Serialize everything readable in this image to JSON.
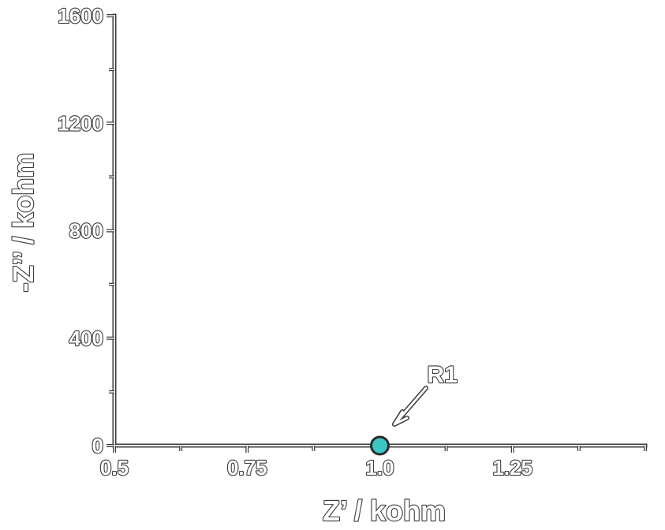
{
  "chart_data": {
    "type": "scatter",
    "xlabel": "Z’ / kohm",
    "ylabel": "-Z’’ / kohm",
    "xlim": [
      0.5,
      1.5
    ],
    "ylim": [
      0,
      1600
    ],
    "x_ticks": [
      {
        "value": 0.5,
        "label": "0.5"
      },
      {
        "value": 0.75,
        "label": "0.75"
      },
      {
        "value": 1.0,
        "label": "1.0"
      },
      {
        "value": 1.25,
        "label": "1.25"
      }
    ],
    "x_minor_ticks": [
      0.625,
      0.875,
      1.125,
      1.375,
      1.5
    ],
    "y_ticks": [
      {
        "value": 0,
        "label": "0"
      },
      {
        "value": 400,
        "label": "400"
      },
      {
        "value": 800,
        "label": "800"
      },
      {
        "value": 1200,
        "label": "1200"
      },
      {
        "value": 1600,
        "label": "1600"
      }
    ],
    "y_minor_ticks": [
      200,
      600,
      1000,
      1400
    ],
    "grid": false,
    "points": [
      {
        "x": 1.0,
        "y": 0,
        "color": "#3cc6c4"
      }
    ],
    "annotations": [
      {
        "text": "R1",
        "x": 1.0,
        "y": 0
      }
    ]
  }
}
